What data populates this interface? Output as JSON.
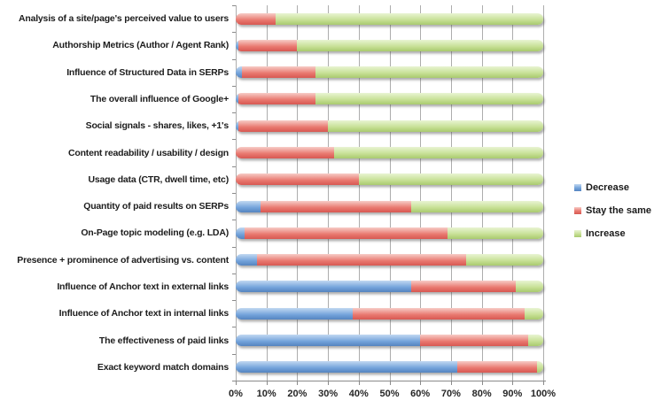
{
  "chart_data": {
    "type": "bar",
    "orientation": "horizontal",
    "stacked": true,
    "title": "",
    "xlabel": "",
    "ylabel": "",
    "unit": "percent",
    "xlim": [
      0,
      100
    ],
    "x_ticks": [
      "0%",
      "10%",
      "20%",
      "30%",
      "40%",
      "50%",
      "60%",
      "70%",
      "80%",
      "90%",
      "100%"
    ],
    "grid": "vertical-on",
    "legend_position": "right",
    "series": [
      {
        "name": "Decrease",
        "key": "decrease",
        "base": "#74a4db",
        "light": "#c2d8f1",
        "dark": "#5584c0"
      },
      {
        "name": "Stay the same",
        "key": "stay",
        "base": "#e97970",
        "light": "#f7ccc7",
        "dark": "#d75852"
      },
      {
        "name": "Increase",
        "key": "increase",
        "base": "#c7e095",
        "light": "#e9f4d3",
        "dark": "#a9ca6e"
      }
    ],
    "categories": [
      "Analysis of a site/page's perceived value to users",
      "Authorship Metrics (Author / Agent Rank)",
      "Influence of Structured Data in SERPs",
      "The overall influence of Google+",
      "Social signals - shares, likes, +1's",
      "Content readability / usability / design",
      "Usage data (CTR, dwell time, etc)",
      "Quantity of paid results on SERPs",
      "On-Page topic modeling (e.g. LDA)",
      "Presence + prominence of advertising vs. content",
      "Influence of Anchor text in external links",
      "Influence of Anchor text in internal links",
      "The effectiveness of paid links",
      "Exact keyword match domains"
    ],
    "rows": [
      {
        "label": "Analysis of a site/page's perceived value to users",
        "values": [
          0,
          13,
          87
        ]
      },
      {
        "label": "Authorship Metrics (Author / Agent Rank)",
        "values": [
          1,
          19,
          80
        ]
      },
      {
        "label": "Influence of Structured Data in SERPs",
        "values": [
          2,
          24,
          74
        ]
      },
      {
        "label": "The overall influence of Google+",
        "values": [
          1,
          25,
          74
        ]
      },
      {
        "label": "Social signals - shares, likes, +1's",
        "values": [
          1,
          29,
          70
        ]
      },
      {
        "label": "Content readability / usability / design",
        "values": [
          0,
          32,
          68
        ]
      },
      {
        "label": "Usage data (CTR, dwell time, etc)",
        "values": [
          0,
          40,
          60
        ]
      },
      {
        "label": "Quantity of paid results on SERPs",
        "values": [
          8,
          49,
          43
        ]
      },
      {
        "label": "On-Page topic modeling (e.g. LDA)",
        "values": [
          3,
          66,
          31
        ]
      },
      {
        "label": "Presence + prominence of advertising vs. content",
        "values": [
          7,
          68,
          25
        ]
      },
      {
        "label": "Influence of Anchor text in external links",
        "values": [
          57,
          34,
          9
        ]
      },
      {
        "label": "Influence of Anchor text in internal links",
        "values": [
          38,
          56,
          6
        ]
      },
      {
        "label": "The effectiveness of paid links",
        "values": [
          60,
          35,
          5
        ]
      },
      {
        "label": "Exact keyword match domains",
        "values": [
          72,
          26,
          2
        ]
      }
    ]
  },
  "colors": {
    "background": "#ffffff",
    "gridline": "#adadad",
    "axis": "#8a8a8a",
    "label_text": "#1d1d1d",
    "tick_text": "#262626"
  }
}
